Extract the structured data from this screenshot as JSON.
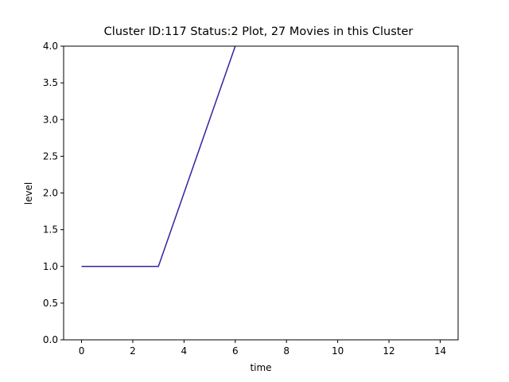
{
  "chart_data": {
    "type": "line",
    "title": "Cluster ID:117 Status:2 Plot, 27 Movies in this Cluster",
    "x_label": "time",
    "y_label": "level",
    "x": [
      0,
      1,
      2,
      3,
      4,
      5,
      6
    ],
    "series": [
      {
        "color": "#3b1fa3",
        "values": [
          1,
          1,
          1,
          1,
          2,
          3,
          4
        ]
      }
    ],
    "xlim": [
      -0.7,
      14.7
    ],
    "xticks": [
      0,
      2,
      4,
      6,
      8,
      10,
      12,
      14
    ],
    "ylim": [
      0,
      4
    ],
    "yticks": [
      {
        "value": 0,
        "label": "0.0"
      },
      {
        "value": 0.5,
        "label": "0.5"
      },
      {
        "value": 1,
        "label": "1.0"
      },
      {
        "value": 1.5,
        "label": "1.5"
      },
      {
        "value": 2,
        "label": "2.0"
      },
      {
        "value": 2.5,
        "label": "2.5"
      },
      {
        "value": 3,
        "label": "3.0"
      },
      {
        "value": 3.5,
        "label": "3.5"
      },
      {
        "value": 4,
        "label": "4.0"
      }
    ],
    "grid": false
  }
}
